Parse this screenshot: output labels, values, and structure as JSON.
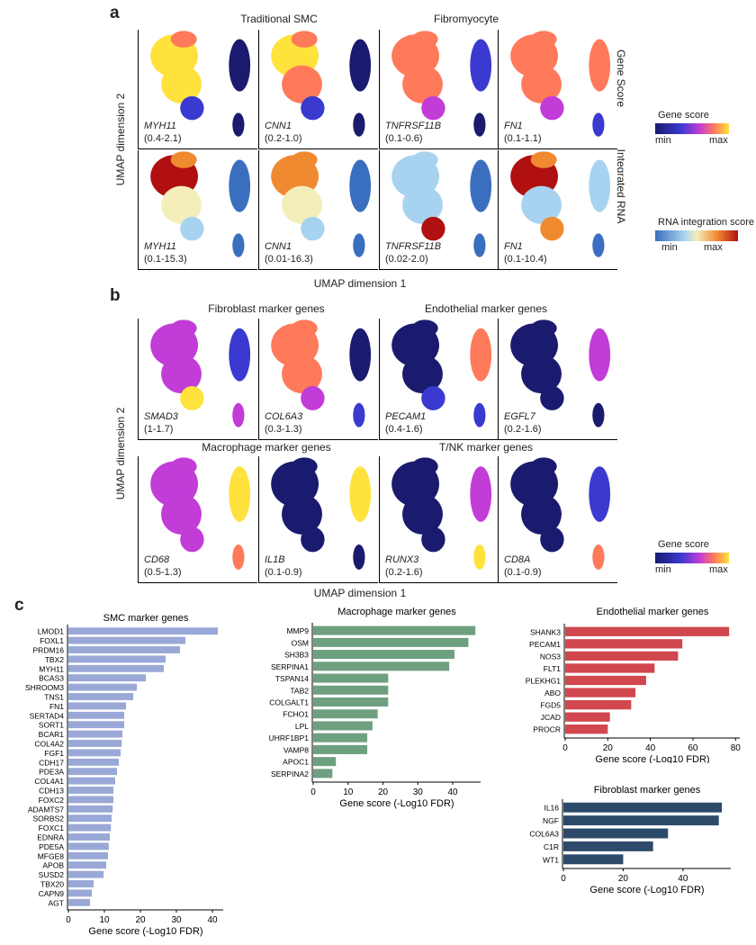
{
  "panel_a": {
    "letter": "a",
    "col_titles": [
      "Traditional SMC",
      "Fibromyocyte"
    ],
    "row_labels": [
      "Gene Score",
      "Integrated RNA"
    ],
    "y_axis": "UMAP dimension 2",
    "x_axis": "UMAP dimension 1",
    "rows": [
      [
        {
          "gene": "MYH11",
          "range": "(0.4-2.1)"
        },
        {
          "gene": "CNN1",
          "range": "(0.2-1.0)"
        },
        {
          "gene": "TNFRSF11B",
          "range": "(0.1-0.6)"
        },
        {
          "gene": "FN1",
          "range": "(0.1-1.1)"
        }
      ],
      [
        {
          "gene": "MYH11",
          "range": "(0.1-15.3)"
        },
        {
          "gene": "CNN1",
          "range": "(0.01-16.3)"
        },
        {
          "gene": "TNFRSF11B",
          "range": "(0.02-2.0)"
        },
        {
          "gene": "FN1",
          "range": "(0.1-10.4)"
        }
      ]
    ],
    "legend_gene": {
      "title": "Gene score",
      "min": "min",
      "max": "max"
    },
    "legend_rna": {
      "title": "RNA integration score",
      "min": "min",
      "max": "max"
    }
  },
  "panel_b": {
    "letter": "b",
    "titles_top": [
      "Fibroblast marker genes",
      "Endothelial marker genes"
    ],
    "titles_bottom": [
      "Macrophage marker genes",
      "T/NK marker genes"
    ],
    "y_axis": "UMAP dimension 2",
    "x_axis": "UMAP dimension 1",
    "rows": [
      [
        {
          "gene": "SMAD3",
          "range": "(1-1.7)"
        },
        {
          "gene": "COL6A3",
          "range": "(0.3-1.3)"
        },
        {
          "gene": "PECAM1",
          "range": "(0.4-1.6)"
        },
        {
          "gene": "EGFL7",
          "range": "(0.2-1.6)"
        }
      ],
      [
        {
          "gene": "CD68",
          "range": "(0.5-1.3)"
        },
        {
          "gene": "IL1B",
          "range": "(0.1-0.9)"
        },
        {
          "gene": "RUNX3",
          "range": "(0.2-1.6)"
        },
        {
          "gene": "CD8A",
          "range": "(0.1-0.9)"
        }
      ]
    ],
    "legend_gene": {
      "title": "Gene score",
      "min": "min",
      "max": "max"
    }
  },
  "panel_c": {
    "letter": "c"
  },
  "chart_data": [
    {
      "type": "bar",
      "orientation": "horizontal",
      "title": "SMC marker genes",
      "xlabel": "Gene score (-Log10 FDR)",
      "color": "#99a8d6",
      "xlim": [
        0,
        43
      ],
      "xticks": [
        0,
        10,
        20,
        30,
        40
      ],
      "categories": [
        "LMOD1",
        "FOXL1",
        "PRDM16",
        "TBX2",
        "MYH11",
        "BCAS3",
        "SHROOM3",
        "TNS1",
        "FN1",
        "SERTAD4",
        "SORT1",
        "BCAR1",
        "COL4A2",
        "FGF1",
        "CDH17",
        "PDE3A",
        "COL4A1",
        "CDH13",
        "FOXC2",
        "ADAMTS7",
        "SORBS2",
        "FOXC1",
        "EDNRA",
        "PDE5A",
        "MFGE8",
        "APOB",
        "SUSD2",
        "TBX20",
        "CAPN9",
        "AGT"
      ],
      "values": [
        41.5,
        32.5,
        31.0,
        27.0,
        26.5,
        21.5,
        19.0,
        18.0,
        16.0,
        15.5,
        15.5,
        15.0,
        14.8,
        14.5,
        14.0,
        13.5,
        13.0,
        12.5,
        12.5,
        12.3,
        12.0,
        11.8,
        11.5,
        11.2,
        11.0,
        10.5,
        9.8,
        7.0,
        6.5,
        6.0
      ]
    },
    {
      "type": "bar",
      "orientation": "horizontal",
      "title": "Macrophage marker genes",
      "xlabel": "Gene score (-Log10 FDR)",
      "color": "#6ea080",
      "xlim": [
        0,
        48
      ],
      "xticks": [
        0,
        10,
        20,
        30,
        40
      ],
      "categories": [
        "MMP9",
        "OSM",
        "SH3B3",
        "SERPINA1",
        "TSPAN14",
        "TAB2",
        "COLGALT1",
        "FCHO1",
        "LPL",
        "UHRF1BP1",
        "VAMP8",
        "APOC1",
        "SERPINA2"
      ],
      "values": [
        46.5,
        44.5,
        40.5,
        39.0,
        21.5,
        21.5,
        21.5,
        18.5,
        17.0,
        15.5,
        15.5,
        6.5,
        5.5
      ]
    },
    {
      "type": "bar",
      "orientation": "horizontal",
      "title": "Endothelial marker genes",
      "xlabel": "Gene score (-Log10 FDR)",
      "color": "#d0474e",
      "xlim": [
        0,
        82
      ],
      "xticks": [
        0,
        20,
        40,
        60,
        80
      ],
      "categories": [
        "SHANK3",
        "PECAM1",
        "NOS3",
        "FLT1",
        "PLEKHG1",
        "ABO",
        "FGD5",
        "JCAD",
        "PROCR"
      ],
      "values": [
        77,
        55,
        53,
        42,
        38,
        33,
        31,
        21,
        20
      ]
    },
    {
      "type": "bar",
      "orientation": "horizontal",
      "title": "Fibroblast marker genes",
      "xlabel": "Gene score (-Log10 FDR)",
      "color": "#2e4a6b",
      "xlim": [
        0,
        56
      ],
      "xticks": [
        0,
        20,
        40
      ],
      "categories": [
        "IL16",
        "NGF",
        "COL6A3",
        "C1R",
        "WT1"
      ],
      "values": [
        53,
        52,
        35,
        30,
        20
      ]
    }
  ]
}
